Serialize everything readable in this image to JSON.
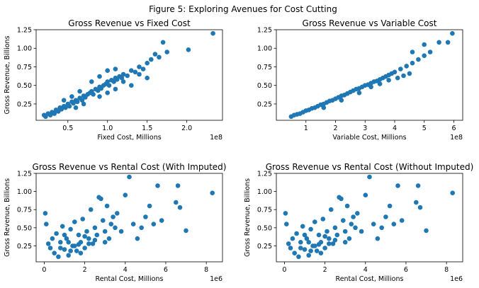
{
  "figure_title": "Figure 5: Exploring Avenues for Cost Cutting",
  "point_color": "#1f77b4",
  "chart_data": [
    {
      "type": "scatter",
      "title": "Gross Revenue vs Fixed Cost",
      "xlabel": "Fixed Cost, Millions",
      "ylabel": "Gross Revenue, Billions",
      "x_offset_label": "1e8",
      "xlim": [
        0.1,
        2.45
      ],
      "ylim": [
        0.03,
        1.25
      ],
      "xticks": [
        0.5,
        1.0,
        1.5,
        2.0
      ],
      "xtick_labels": [
        "0.5",
        "1.0",
        "1.5",
        "2.0"
      ],
      "yticks": [
        0.25,
        0.5,
        0.75,
        1.0,
        1.25
      ],
      "ytick_labels": [
        "0.25",
        "0.50",
        "0.75",
        "1.00",
        "1.25"
      ],
      "points": [
        [
          0.2,
          0.1
        ],
        [
          0.22,
          0.08
        ],
        [
          0.25,
          0.12
        ],
        [
          0.28,
          0.1
        ],
        [
          0.3,
          0.14
        ],
        [
          0.33,
          0.12
        ],
        [
          0.35,
          0.17
        ],
        [
          0.38,
          0.15
        ],
        [
          0.4,
          0.2
        ],
        [
          0.42,
          0.18
        ],
        [
          0.45,
          0.22
        ],
        [
          0.47,
          0.2
        ],
        [
          0.5,
          0.25
        ],
        [
          0.52,
          0.22
        ],
        [
          0.55,
          0.28
        ],
        [
          0.57,
          0.26
        ],
        [
          0.6,
          0.3
        ],
        [
          0.62,
          0.28
        ],
        [
          0.65,
          0.33
        ],
        [
          0.68,
          0.3
        ],
        [
          0.7,
          0.36
        ],
        [
          0.72,
          0.34
        ],
        [
          0.75,
          0.38
        ],
        [
          0.78,
          0.4
        ],
        [
          0.8,
          0.42
        ],
        [
          0.82,
          0.38
        ],
        [
          0.85,
          0.45
        ],
        [
          0.88,
          0.43
        ],
        [
          0.9,
          0.48
        ],
        [
          0.92,
          0.46
        ],
        [
          0.95,
          0.5
        ],
        [
          0.98,
          0.52
        ],
        [
          1.0,
          0.55
        ],
        [
          1.02,
          0.5
        ],
        [
          1.05,
          0.57
        ],
        [
          1.08,
          0.55
        ],
        [
          1.1,
          0.6
        ],
        [
          1.12,
          0.58
        ],
        [
          1.15,
          0.62
        ],
        [
          1.18,
          0.6
        ],
        [
          1.2,
          0.65
        ],
        [
          1.25,
          0.63
        ],
        [
          1.3,
          0.7
        ],
        [
          1.35,
          0.68
        ],
        [
          1.4,
          0.75
        ],
        [
          1.45,
          0.72
        ],
        [
          1.5,
          0.8
        ],
        [
          1.55,
          0.85
        ],
        [
          1.6,
          0.92
        ],
        [
          1.65,
          0.88
        ],
        [
          1.7,
          1.08
        ],
        [
          1.75,
          0.95
        ],
        [
          2.02,
          0.98
        ],
        [
          2.33,
          1.2
        ],
        [
          0.6,
          0.2
        ],
        [
          0.7,
          0.25
        ],
        [
          0.9,
          0.35
        ],
        [
          1.0,
          0.4
        ],
        [
          1.1,
          0.45
        ],
        [
          1.2,
          0.55
        ],
        [
          1.3,
          0.5
        ],
        [
          1.5,
          0.6
        ],
        [
          0.8,
          0.55
        ],
        [
          0.9,
          0.62
        ],
        [
          1.0,
          0.7
        ],
        [
          1.1,
          0.72
        ],
        [
          0.45,
          0.3
        ],
        [
          0.55,
          0.35
        ],
        [
          0.65,
          0.42
        ],
        [
          1.4,
          0.65
        ]
      ]
    },
    {
      "type": "scatter",
      "title": "Gross Revenue vs Variable Cost",
      "xlabel": "Variable Cost, Millions",
      "ylabel": "",
      "x_offset_label": "1e8",
      "xlim": [
        0.0,
        6.3
      ],
      "ylim": [
        0.03,
        1.25
      ],
      "xticks": [
        1,
        2,
        3,
        4,
        5,
        6
      ],
      "xtick_labels": [
        "1",
        "2",
        "3",
        "4",
        "5",
        "6"
      ],
      "yticks": [
        0.25,
        0.5,
        0.75,
        1.0,
        1.25
      ],
      "ytick_labels": [
        "0.25",
        "0.50",
        "0.75",
        "1.00",
        "1.25"
      ],
      "points": [
        [
          0.5,
          0.08
        ],
        [
          0.6,
          0.1
        ],
        [
          0.7,
          0.11
        ],
        [
          0.8,
          0.12
        ],
        [
          0.9,
          0.14
        ],
        [
          1.0,
          0.16
        ],
        [
          1.1,
          0.17
        ],
        [
          1.2,
          0.19
        ],
        [
          1.3,
          0.2
        ],
        [
          1.4,
          0.22
        ],
        [
          1.5,
          0.24
        ],
        [
          1.6,
          0.25
        ],
        [
          1.7,
          0.27
        ],
        [
          1.8,
          0.29
        ],
        [
          1.9,
          0.3
        ],
        [
          2.0,
          0.32
        ],
        [
          2.1,
          0.34
        ],
        [
          2.2,
          0.36
        ],
        [
          2.3,
          0.37
        ],
        [
          2.4,
          0.39
        ],
        [
          2.5,
          0.41
        ],
        [
          2.6,
          0.43
        ],
        [
          2.7,
          0.45
        ],
        [
          2.8,
          0.46
        ],
        [
          2.9,
          0.48
        ],
        [
          3.0,
          0.5
        ],
        [
          3.1,
          0.51
        ],
        [
          3.2,
          0.53
        ],
        [
          3.3,
          0.55
        ],
        [
          3.4,
          0.56
        ],
        [
          3.5,
          0.58
        ],
        [
          3.6,
          0.6
        ],
        [
          3.7,
          0.62
        ],
        [
          3.8,
          0.64
        ],
        [
          3.9,
          0.66
        ],
        [
          4.0,
          0.68
        ],
        [
          4.2,
          0.72
        ],
        [
          4.4,
          0.76
        ],
        [
          4.6,
          0.8
        ],
        [
          4.8,
          0.85
        ],
        [
          5.0,
          0.9
        ],
        [
          5.2,
          0.95
        ],
        [
          5.5,
          1.08
        ],
        [
          5.8,
          1.08
        ],
        [
          5.95,
          1.2
        ],
        [
          4.3,
          0.63
        ],
        [
          4.6,
          0.95
        ],
        [
          1.6,
          0.2
        ],
        [
          2.2,
          0.3
        ],
        [
          2.8,
          0.4
        ],
        [
          3.2,
          0.48
        ],
        [
          3.5,
          0.52
        ],
        [
          3.8,
          0.57
        ],
        [
          4.1,
          0.6
        ],
        [
          4.5,
          0.66
        ],
        [
          5.0,
          1.05
        ]
      ]
    },
    {
      "type": "scatter",
      "title": "Gross Revenue vs Rental Cost (With Imputed)",
      "xlabel": "Rental Cost, Millions",
      "ylabel": "Gross Revenue, Billions",
      "x_offset_label": "1e6",
      "xlim": [
        -0.4,
        8.8
      ],
      "ylim": [
        0.03,
        1.25
      ],
      "xticks": [
        0,
        2,
        4,
        6,
        8
      ],
      "xtick_labels": [
        "0",
        "2",
        "4",
        "6",
        "8"
      ],
      "yticks": [
        0.25,
        0.5,
        0.75,
        1.0,
        1.25
      ],
      "ytick_labels": [
        "0.25",
        "0.50",
        "0.75",
        "1.00",
        "1.25"
      ],
      "points": [
        [
          0.05,
          0.7
        ],
        [
          0.1,
          0.55
        ],
        [
          0.2,
          0.28
        ],
        [
          0.3,
          0.22
        ],
        [
          0.4,
          0.35
        ],
        [
          0.5,
          0.15
        ],
        [
          0.6,
          0.42
        ],
        [
          0.7,
          0.1
        ],
        [
          0.8,
          0.3
        ],
        [
          0.9,
          0.52
        ],
        [
          1.0,
          0.2
        ],
        [
          1.1,
          0.35
        ],
        [
          1.2,
          0.12
        ],
        [
          1.3,
          0.48
        ],
        [
          1.4,
          0.25
        ],
        [
          1.5,
          0.58
        ],
        [
          1.6,
          0.18
        ],
        [
          1.7,
          0.4
        ],
        [
          1.8,
          0.3
        ],
        [
          1.9,
          0.62
        ],
        [
          2.0,
          0.22
        ],
        [
          2.1,
          0.45
        ],
        [
          2.2,
          0.35
        ],
        [
          2.3,
          0.75
        ],
        [
          2.4,
          0.28
        ],
        [
          2.5,
          0.5
        ],
        [
          2.6,
          0.4
        ],
        [
          2.7,
          0.92
        ],
        [
          2.8,
          0.9
        ],
        [
          2.9,
          0.6
        ],
        [
          3.0,
          0.45
        ],
        [
          3.1,
          0.8
        ],
        [
          3.2,
          0.35
        ],
        [
          3.3,
          0.55
        ],
        [
          3.4,
          0.65
        ],
        [
          3.5,
          0.5
        ],
        [
          3.6,
          0.7
        ],
        [
          3.8,
          0.45
        ],
        [
          4.0,
          0.95
        ],
        [
          4.2,
          1.2
        ],
        [
          4.4,
          0.55
        ],
        [
          4.6,
          0.35
        ],
        [
          4.8,
          0.5
        ],
        [
          5.0,
          0.65
        ],
        [
          5.2,
          0.8
        ],
        [
          5.4,
          0.55
        ],
        [
          5.6,
          1.08
        ],
        [
          5.8,
          0.6
        ],
        [
          6.5,
          0.85
        ],
        [
          6.6,
          1.08
        ],
        [
          6.7,
          0.78
        ],
        [
          7.0,
          0.46
        ],
        [
          8.3,
          0.98
        ],
        [
          1.2,
          0.3
        ],
        [
          1.5,
          0.25
        ],
        [
          1.8,
          0.15
        ],
        [
          2.0,
          0.38
        ],
        [
          2.2,
          0.28
        ],
        [
          2.5,
          0.33
        ],
        [
          3.0,
          0.3
        ],
        [
          1.0,
          0.4
        ],
        [
          0.8,
          0.22
        ],
        [
          1.3,
          0.18
        ],
        [
          1.7,
          0.27
        ]
      ]
    },
    {
      "type": "scatter",
      "title": "Gross Revenue vs Rental Cost (Without Imputed)",
      "xlabel": "Rental Cost, Millions",
      "ylabel": "Gross Revenue, Billions",
      "x_offset_label": "1e6",
      "xlim": [
        -0.4,
        8.8
      ],
      "ylim": [
        0.03,
        1.25
      ],
      "xticks": [
        0,
        2,
        4,
        6,
        8
      ],
      "xtick_labels": [
        "0",
        "2",
        "4",
        "6",
        "8"
      ],
      "yticks": [
        0.25,
        0.5,
        0.75,
        1.0,
        1.25
      ],
      "ytick_labels": [
        "0.25",
        "0.50",
        "0.75",
        "1.00",
        "1.25"
      ],
      "points": [
        [
          0.05,
          0.7
        ],
        [
          0.1,
          0.55
        ],
        [
          0.2,
          0.28
        ],
        [
          0.3,
          0.22
        ],
        [
          0.4,
          0.35
        ],
        [
          0.5,
          0.15
        ],
        [
          0.6,
          0.42
        ],
        [
          0.7,
          0.1
        ],
        [
          0.8,
          0.3
        ],
        [
          0.9,
          0.52
        ],
        [
          1.0,
          0.2
        ],
        [
          1.1,
          0.35
        ],
        [
          1.2,
          0.12
        ],
        [
          1.3,
          0.48
        ],
        [
          1.4,
          0.25
        ],
        [
          1.5,
          0.58
        ],
        [
          1.6,
          0.18
        ],
        [
          1.7,
          0.4
        ],
        [
          1.8,
          0.3
        ],
        [
          1.9,
          0.62
        ],
        [
          2.0,
          0.22
        ],
        [
          2.1,
          0.45
        ],
        [
          2.2,
          0.35
        ],
        [
          2.3,
          0.75
        ],
        [
          2.4,
          0.28
        ],
        [
          2.5,
          0.5
        ],
        [
          2.6,
          0.4
        ],
        [
          2.7,
          0.92
        ],
        [
          2.8,
          0.9
        ],
        [
          2.9,
          0.6
        ],
        [
          3.0,
          0.45
        ],
        [
          3.1,
          0.8
        ],
        [
          3.2,
          0.35
        ],
        [
          3.3,
          0.55
        ],
        [
          3.4,
          0.65
        ],
        [
          3.5,
          0.5
        ],
        [
          3.6,
          0.7
        ],
        [
          3.8,
          0.45
        ],
        [
          4.0,
          0.95
        ],
        [
          4.2,
          1.2
        ],
        [
          4.4,
          0.55
        ],
        [
          4.6,
          0.35
        ],
        [
          4.8,
          0.5
        ],
        [
          5.0,
          0.65
        ],
        [
          5.2,
          0.8
        ],
        [
          5.4,
          0.55
        ],
        [
          5.6,
          1.08
        ],
        [
          5.8,
          0.6
        ],
        [
          6.5,
          0.85
        ],
        [
          6.6,
          1.08
        ],
        [
          6.7,
          0.78
        ],
        [
          7.0,
          0.46
        ],
        [
          8.3,
          0.98
        ],
        [
          1.2,
          0.3
        ],
        [
          1.5,
          0.25
        ],
        [
          1.8,
          0.15
        ],
        [
          2.0,
          0.38
        ],
        [
          2.2,
          0.28
        ],
        [
          2.5,
          0.33
        ],
        [
          3.0,
          0.3
        ],
        [
          1.0,
          0.4
        ],
        [
          0.8,
          0.22
        ],
        [
          1.3,
          0.18
        ],
        [
          1.7,
          0.27
        ]
      ]
    }
  ]
}
